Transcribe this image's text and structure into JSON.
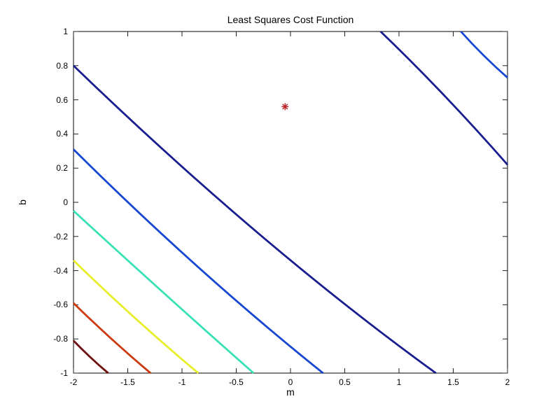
{
  "figure": {
    "background": "#ffffff",
    "title": "Least Squares Cost Function",
    "xlabel": "m",
    "ylabel": "b"
  },
  "chart_data": {
    "type": "contour",
    "title": "Least Squares Cost Function",
    "xlabel": "m",
    "ylabel": "b",
    "xlim": [
      -2,
      2
    ],
    "ylim": [
      -1,
      1
    ],
    "grid": false,
    "legend": null,
    "xticks": [
      -2,
      -1.5,
      -1,
      -0.5,
      0,
      0.5,
      1,
      1.5,
      2
    ],
    "yticks": [
      -1,
      -0.8,
      -0.6,
      -0.4,
      -0.2,
      0,
      0.2,
      0.4,
      0.6,
      0.8,
      1
    ],
    "xtick_labels": [
      "-2",
      "-1.5",
      "-1",
      "-0.5",
      "0",
      "0.5",
      "1",
      "1.5",
      "2"
    ],
    "ytick_labels": [
      "-1",
      "-0.8",
      "-0.6",
      "-0.4",
      "-0.2",
      "0",
      "0.2",
      "0.4",
      "0.6",
      "0.8",
      "1"
    ],
    "minimum": {
      "m": -0.05,
      "b": 0.56,
      "marker": "asterisk",
      "color": "#bb2025"
    },
    "contour_levels": [
      {
        "level": 1,
        "color": "#181d8f",
        "arcs": [
          [
            [
              -2.0,
              0.8
            ],
            [
              -0.3,
              -0.18
            ],
            [
              1.34,
              -1.0
            ]
          ],
          [
            [
              0.83,
              1.0
            ],
            [
              1.41,
              0.63
            ],
            [
              2.0,
              0.22
            ]
          ]
        ]
      },
      {
        "level": 2,
        "color": "#1747d1",
        "arcs": [
          [
            [
              -2.0,
              0.31
            ],
            [
              -0.85,
              -0.38
            ],
            [
              0.3,
              -1.0
            ]
          ],
          [
            [
              1.57,
              1.0
            ],
            [
              1.78,
              0.86
            ],
            [
              2.0,
              0.73
            ]
          ]
        ]
      },
      {
        "level": 3,
        "color": "#38e2b5",
        "arcs": [
          [
            [
              -2.0,
              -0.05
            ],
            [
              -1.17,
              -0.53
            ],
            [
              -0.34,
              -1.0
            ]
          ]
        ]
      },
      {
        "level": 4,
        "color": "#e8ee2a",
        "arcs": [
          [
            [
              -2.0,
              -0.34
            ],
            [
              -1.43,
              -0.68
            ],
            [
              -0.85,
              -1.0
            ]
          ]
        ]
      },
      {
        "level": 5,
        "color": "#cc3a10",
        "arcs": [
          [
            [
              -2.0,
              -0.59
            ],
            [
              -1.65,
              -0.8
            ],
            [
              -1.29,
              -1.0
            ]
          ]
        ]
      },
      {
        "level": 6,
        "color": "#701212",
        "arcs": [
          [
            [
              -2.0,
              -0.81
            ],
            [
              -1.84,
              -0.91
            ],
            [
              -1.68,
              -1.0
            ]
          ]
        ]
      }
    ]
  }
}
